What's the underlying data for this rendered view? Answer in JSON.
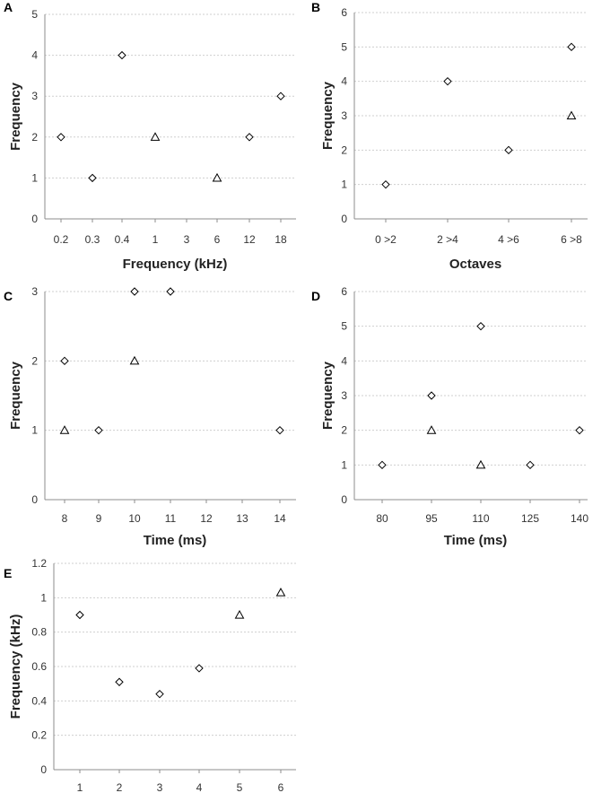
{
  "chart_data": [
    {
      "panel": "A",
      "type": "scatter",
      "title": "",
      "xlabel": "Frequency (kHz)",
      "ylabel": "Frequency",
      "categories": [
        "0.2",
        "0.3",
        "0.4",
        "1",
        "3",
        "6",
        "12",
        "18"
      ],
      "ylim": [
        0,
        5
      ],
      "yticks": [
        0,
        1,
        2,
        3,
        4,
        5
      ],
      "tick_labels": [
        "0",
        "1",
        "2",
        "3",
        "4",
        "5"
      ],
      "grid": true,
      "series": [
        {
          "name": "diamond",
          "marker": "diamond",
          "points": [
            [
              0,
              2
            ],
            [
              1,
              1
            ],
            [
              2,
              4
            ],
            [
              6,
              2
            ],
            [
              7,
              3
            ]
          ]
        },
        {
          "name": "triangle",
          "marker": "triangle",
          "points": [
            [
              3,
              2
            ],
            [
              5,
              1
            ]
          ]
        }
      ]
    },
    {
      "panel": "B",
      "type": "scatter",
      "title": "",
      "xlabel": "Octaves",
      "ylabel": "Frequency",
      "categories": [
        "0 >2",
        "2 >4",
        "4 >6",
        "6 >8"
      ],
      "ylim": [
        0,
        6
      ],
      "yticks": [
        0,
        1,
        2,
        3,
        4,
        5,
        6
      ],
      "tick_labels": [
        "0",
        "1",
        "2",
        "3",
        "4",
        "5",
        "6"
      ],
      "grid": true,
      "series": [
        {
          "name": "diamond",
          "marker": "diamond",
          "points": [
            [
              0,
              1
            ],
            [
              1,
              4
            ],
            [
              2,
              2
            ],
            [
              3,
              5
            ]
          ]
        },
        {
          "name": "triangle",
          "marker": "triangle",
          "points": [
            [
              3,
              3
            ]
          ]
        }
      ]
    },
    {
      "panel": "C",
      "type": "scatter",
      "title": "",
      "xlabel": "Time (ms)",
      "ylabel": "Frequency",
      "categories": [
        "8",
        "9",
        "10",
        "11",
        "12",
        "13",
        "14"
      ],
      "ylim": [
        0,
        3
      ],
      "yticks": [
        0,
        1,
        2,
        3
      ],
      "tick_labels": [
        "0",
        "1",
        "2",
        "3"
      ],
      "grid": true,
      "series": [
        {
          "name": "diamond",
          "marker": "diamond",
          "points": [
            [
              0,
              2
            ],
            [
              1,
              1
            ],
            [
              2,
              3
            ],
            [
              3,
              3
            ],
            [
              6,
              1
            ]
          ]
        },
        {
          "name": "triangle",
          "marker": "triangle",
          "points": [
            [
              0,
              1
            ],
            [
              2,
              2
            ]
          ]
        }
      ]
    },
    {
      "panel": "D",
      "type": "scatter",
      "title": "",
      "xlabel": "Time (ms)",
      "ylabel": "Frequency",
      "categories": [
        "80",
        "95",
        "110",
        "125",
        "140"
      ],
      "ylim": [
        0,
        6
      ],
      "yticks": [
        0,
        1,
        2,
        3,
        4,
        5,
        6
      ],
      "tick_labels": [
        "0",
        "1",
        "2",
        "3",
        "4",
        "5",
        "6"
      ],
      "grid": true,
      "series": [
        {
          "name": "diamond",
          "marker": "diamond",
          "points": [
            [
              0,
              1
            ],
            [
              1,
              3
            ],
            [
              2,
              5
            ],
            [
              3,
              1
            ],
            [
              4,
              2
            ]
          ]
        },
        {
          "name": "triangle",
          "marker": "triangle",
          "points": [
            [
              1,
              2
            ],
            [
              2,
              1
            ]
          ]
        }
      ]
    },
    {
      "panel": "E",
      "type": "scatter",
      "title": "",
      "xlabel": "",
      "ylabel": "Frequency (kHz)",
      "categories": [
        "1",
        "2",
        "3",
        "4",
        "5",
        "6"
      ],
      "ylim": [
        0,
        1.2
      ],
      "yticks": [
        0,
        0.2,
        0.4,
        0.6,
        0.8,
        1,
        1.2
      ],
      "tick_labels": [
        "0",
        "0.2",
        "0.4",
        "0.6",
        "0.8",
        "1",
        "1.2"
      ],
      "grid": true,
      "series": [
        {
          "name": "diamond",
          "marker": "diamond",
          "points": [
            [
              0,
              0.9
            ],
            [
              1,
              0.51
            ],
            [
              2,
              0.44
            ],
            [
              3,
              0.59
            ]
          ]
        },
        {
          "name": "triangle",
          "marker": "triangle",
          "points": [
            [
              4,
              0.9
            ],
            [
              5,
              1.03
            ]
          ]
        }
      ]
    }
  ]
}
